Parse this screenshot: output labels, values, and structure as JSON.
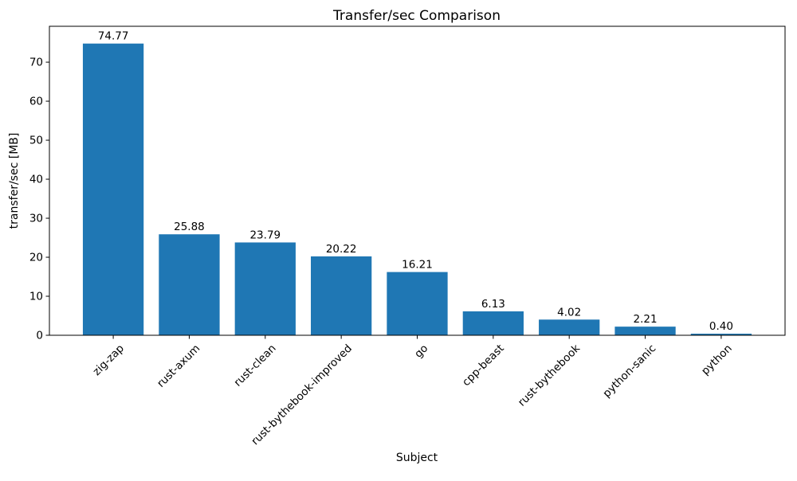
{
  "chart_data": {
    "type": "bar",
    "title": "Transfer/sec Comparison",
    "xlabel": "Subject",
    "ylabel": "transfer/sec [MB]",
    "categories": [
      "zig-zap",
      "rust-axum",
      "rust-clean",
      "rust-bythebook-improved",
      "go",
      "cpp-beast",
      "rust-bythebook",
      "python-sanic",
      "python"
    ],
    "values": [
      74.77,
      25.88,
      23.79,
      20.22,
      16.21,
      6.13,
      4.02,
      2.21,
      0.4
    ],
    "value_labels": [
      "74.77",
      "25.88",
      "23.79",
      "20.22",
      "16.21",
      "6.13",
      "4.02",
      "2.21",
      "0.40"
    ],
    "yticks": [
      0,
      10,
      20,
      30,
      40,
      50,
      60,
      70
    ],
    "ylim": [
      0,
      79.2
    ],
    "xtick_rotation_deg": 45,
    "bar_color": "#1f77b4",
    "text_color": "#000000",
    "background_color": "#ffffff",
    "grid": false,
    "legend": null
  }
}
